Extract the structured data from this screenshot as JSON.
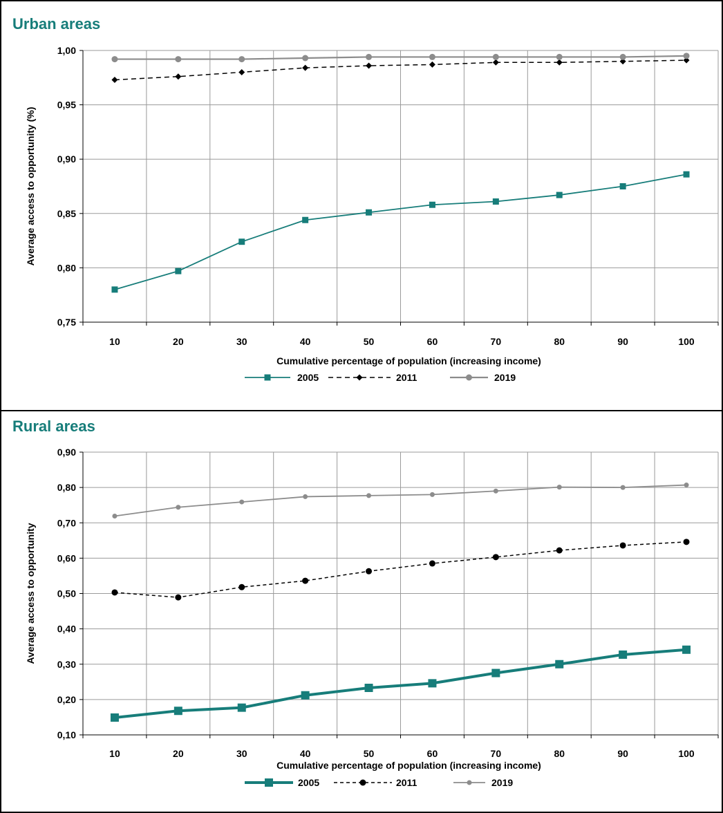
{
  "colors": {
    "s2005": "#177d7a",
    "s2011": "#000000",
    "s2019": "#8c8c8c",
    "title": "#177d7a",
    "grid": "#9a9a9a",
    "border": "#000000"
  },
  "chart_data": [
    {
      "type": "line",
      "title": "Urban areas",
      "xlabel": "Cumulative percentage of population (increasing income)",
      "ylabel": "Average access to opportunity (%)",
      "x": [
        10,
        20,
        30,
        40,
        50,
        60,
        70,
        80,
        90,
        100
      ],
      "x_tick_labels": [
        "10",
        "20",
        "30",
        "40",
        "50",
        "60",
        "70",
        "80",
        "90",
        "100"
      ],
      "ylim": [
        0.75,
        1.0
      ],
      "y_tick_labels": [
        "0,75",
        "0,80",
        "0,85",
        "0,90",
        "0,95",
        "1,00"
      ],
      "grid": true,
      "legend_position": "bottom",
      "series": [
        {
          "name": "2005",
          "values": [
            0.78,
            0.797,
            0.824,
            0.844,
            0.851,
            0.858,
            0.861,
            0.867,
            0.875,
            0.886
          ]
        },
        {
          "name": "2011",
          "values": [
            0.973,
            0.976,
            0.98,
            0.984,
            0.986,
            0.987,
            0.989,
            0.989,
            0.99,
            0.991
          ]
        },
        {
          "name": "2019",
          "values": [
            0.992,
            0.992,
            0.992,
            0.993,
            0.994,
            0.994,
            0.994,
            0.994,
            0.994,
            0.995
          ]
        }
      ]
    },
    {
      "type": "line",
      "title": "Rural areas",
      "xlabel": "Cumulative percentage of population (increasing income)",
      "ylabel": "Average access to opportunity",
      "x": [
        10,
        20,
        30,
        40,
        50,
        60,
        70,
        80,
        90,
        100
      ],
      "x_tick_labels": [
        "10",
        "20",
        "30",
        "40",
        "50",
        "60",
        "70",
        "80",
        "90",
        "100"
      ],
      "ylim": [
        0.1,
        0.9
      ],
      "y_tick_labels": [
        "0,10",
        "0,20",
        "0,30",
        "0,40",
        "0,50",
        "0,60",
        "0,70",
        "0,80",
        "0,90"
      ],
      "grid": true,
      "legend_position": "bottom",
      "series": [
        {
          "name": "2005",
          "values": [
            0.149,
            0.168,
            0.177,
            0.212,
            0.233,
            0.246,
            0.275,
            0.3,
            0.327,
            0.341
          ]
        },
        {
          "name": "2011",
          "values": [
            0.503,
            0.489,
            0.518,
            0.536,
            0.563,
            0.585,
            0.603,
            0.622,
            0.636,
            0.646
          ]
        },
        {
          "name": "2019",
          "values": [
            0.719,
            0.744,
            0.759,
            0.774,
            0.777,
            0.78,
            0.79,
            0.801,
            0.8,
            0.807
          ]
        }
      ]
    }
  ]
}
